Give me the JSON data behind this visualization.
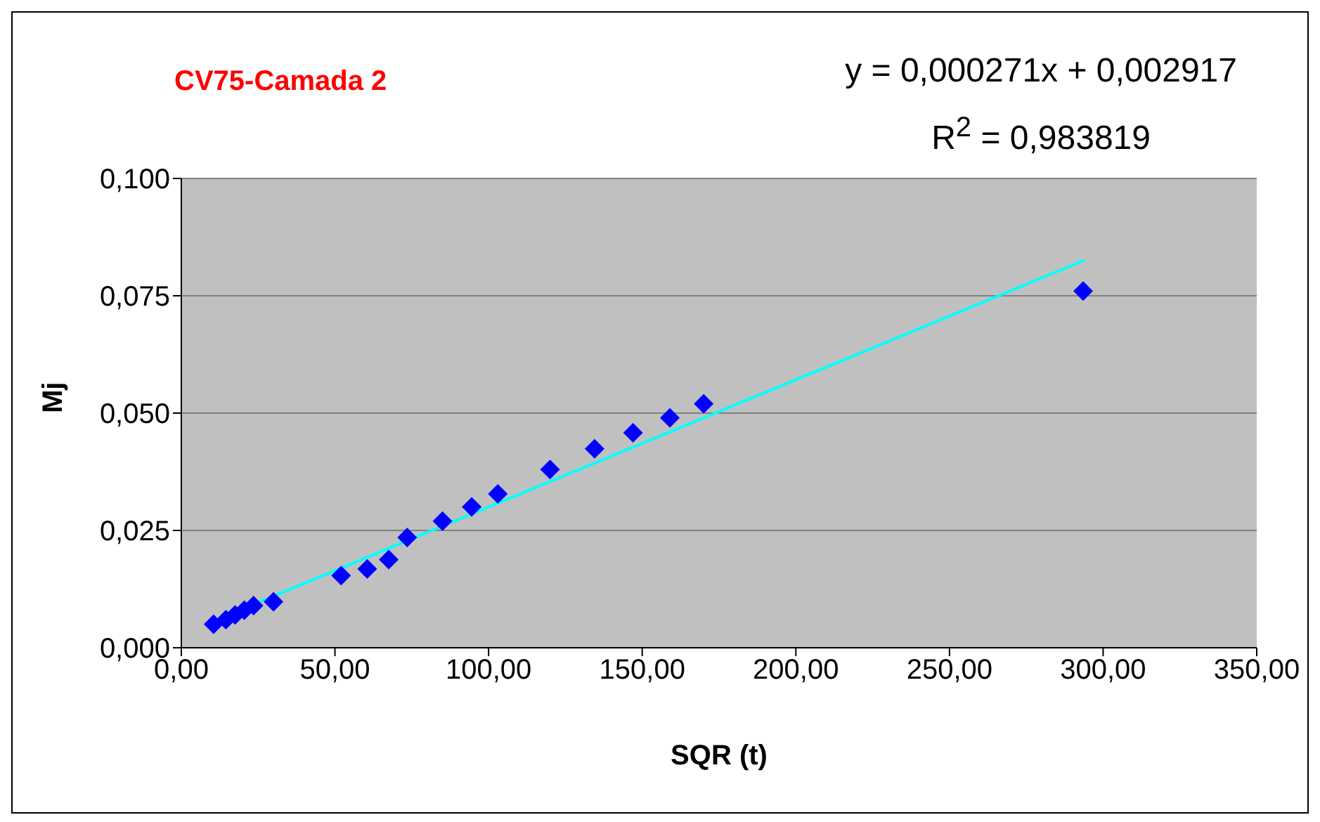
{
  "chart_data": {
    "type": "scatter",
    "title": "CV75-Camada 2",
    "xlabel": "SQR (t)",
    "ylabel": "Mj",
    "annotations": [
      "y = 0,000271x + 0,002917",
      "R$^{2}$ = 0,983819"
    ],
    "xlim": [
      0,
      350
    ],
    "ylim": [
      0,
      0.1
    ],
    "xticks": [
      {
        "value": 0,
        "label": "0,00"
      },
      {
        "value": 50,
        "label": "50,00"
      },
      {
        "value": 100,
        "label": "100,00"
      },
      {
        "value": 150,
        "label": "150,00"
      },
      {
        "value": 200,
        "label": "200,00"
      },
      {
        "value": 250,
        "label": "250,00"
      },
      {
        "value": 300,
        "label": "300,00"
      },
      {
        "value": 350,
        "label": "350,00"
      }
    ],
    "yticks": [
      {
        "value": 0,
        "label": "0,000"
      },
      {
        "value": 0.025,
        "label": "0,025"
      },
      {
        "value": 0.05,
        "label": "0,050"
      },
      {
        "value": 0.075,
        "label": "0,075"
      },
      {
        "value": 0.1,
        "label": "0,100"
      }
    ],
    "grid": "y",
    "legend": false,
    "series": [
      {
        "color": "#0000ff",
        "marker": "diamond",
        "x": [
          10.5,
          14.5,
          17.5,
          20.5,
          23.5,
          30,
          52,
          60.5,
          67.5,
          73.5,
          85,
          94.5,
          103,
          120,
          134.5,
          147,
          159,
          170,
          293.5
        ],
        "values": [
          0.005,
          0.006,
          0.007,
          0.008,
          0.009,
          0.0098,
          0.0154,
          0.0168,
          0.0188,
          0.0235,
          0.027,
          0.03,
          0.0328,
          0.038,
          0.0424,
          0.0458,
          0.049,
          0.052,
          0.076
        ]
      },
      {
        "type": "line",
        "color": "#00ffff",
        "marker": "none",
        "x": [
          10,
          294
        ],
        "values": [
          0.0056,
          0.0826
        ]
      }
    ]
  }
}
